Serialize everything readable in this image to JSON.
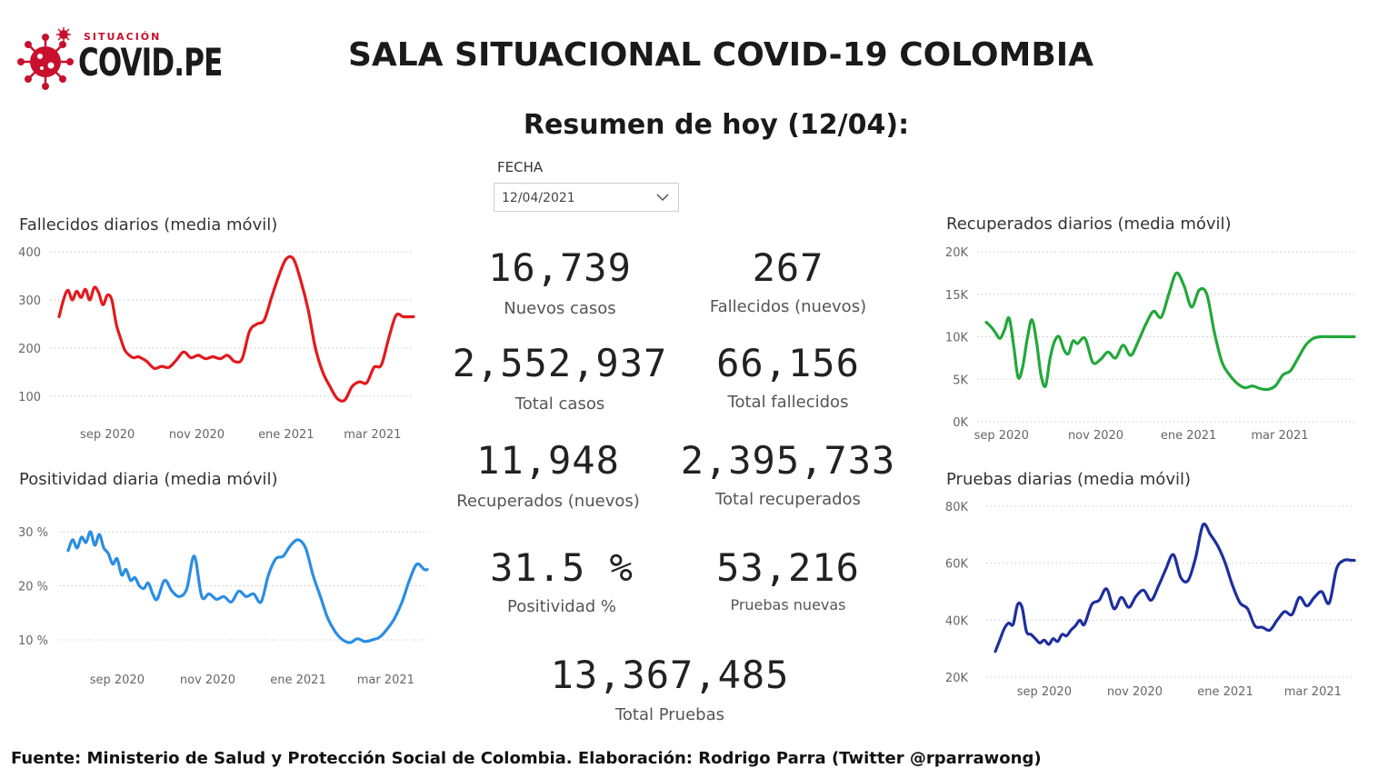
{
  "logo": {
    "small": "SITUACIÓN",
    "big": "COVID.PE"
  },
  "header": {
    "title": "SALA SITUACIONAL COVID-19 COLOMBIA",
    "subtitle": "Resumen de hoy (12/04):"
  },
  "filter": {
    "label": "FECHA",
    "value": "12/04/2021"
  },
  "kpis": [
    {
      "value": "16,739",
      "label": "Nuevos casos"
    },
    {
      "value": "267",
      "label": "Fallecidos (nuevos)"
    },
    {
      "value": "2,552,937",
      "label": "Total casos"
    },
    {
      "value": "66,156",
      "label": "Total fallecidos"
    },
    {
      "value": "11,948",
      "label": "Recuperados (nuevos)"
    },
    {
      "value": "2,395,733",
      "label": "Total recuperados"
    },
    {
      "value": "31.5 %",
      "label": "Positividad %"
    },
    {
      "value": "53,216",
      "label": "Pruebas nuevas"
    },
    {
      "value": "13,367,485",
      "label": "Total Pruebas"
    }
  ],
  "footer": "Fuente: Ministerio de Salud y Protección Social de Colombia. Elaboración: Rodrigo Parra (Twitter @rparrawong)",
  "chart_data": [
    {
      "id": "fallecidos",
      "type": "line",
      "title": "Fallecidos diarios (media móvil)",
      "color": "#e3191c",
      "x_range": [
        0,
        242
      ],
      "ylim": [
        100,
        400
      ],
      "yticks": [
        100,
        200,
        300,
        400
      ],
      "ytick_labels": [
        "100",
        "200",
        "300",
        "400"
      ],
      "xtick_labels": [
        "sep 2020",
        "nov 2020",
        "ene 2021",
        "mar 2021"
      ],
      "xticks": [
        33,
        94,
        155,
        214
      ],
      "grid": true,
      "x": [
        0,
        3,
        6,
        9,
        12,
        15,
        18,
        21,
        24,
        27,
        30,
        33,
        36,
        39,
        42,
        45,
        48,
        51,
        54,
        57,
        60,
        65,
        70,
        75,
        80,
        85,
        90,
        95,
        100,
        105,
        110,
        115,
        120,
        125,
        130,
        135,
        140,
        145,
        150,
        155,
        160,
        165,
        170,
        175,
        180,
        185,
        190,
        195,
        200,
        205,
        210,
        215,
        220,
        225,
        230,
        235,
        240,
        242
      ],
      "values": [
        265,
        300,
        320,
        300,
        318,
        305,
        322,
        300,
        326,
        315,
        290,
        310,
        300,
        250,
        220,
        195,
        185,
        180,
        182,
        178,
        172,
        158,
        162,
        160,
        175,
        192,
        180,
        185,
        178,
        182,
        178,
        185,
        172,
        178,
        235,
        250,
        258,
        305,
        350,
        385,
        385,
        340,
        280,
        200,
        150,
        120,
        95,
        92,
        120,
        130,
        128,
        160,
        165,
        220,
        268,
        265,
        265,
        265
      ]
    },
    {
      "id": "positividad",
      "type": "line",
      "title": "Positividad diaria (media móvil)",
      "color": "#2a8de4",
      "x_range": [
        0,
        242
      ],
      "ylim": [
        10,
        30
      ],
      "yticks": [
        10,
        20,
        30
      ],
      "ytick_labels": [
        "10 %",
        "20 %",
        "30 %"
      ],
      "xtick_labels": [
        "sep 2020",
        "nov 2020",
        "ene 2021",
        "mar 2021"
      ],
      "xticks": [
        33,
        94,
        155,
        214
      ],
      "grid": true,
      "x": [
        0,
        3,
        6,
        9,
        12,
        15,
        18,
        21,
        24,
        27,
        30,
        33,
        36,
        39,
        42,
        45,
        48,
        51,
        54,
        57,
        60,
        65,
        70,
        75,
        80,
        85,
        90,
        95,
        100,
        105,
        110,
        115,
        120,
        125,
        130,
        135,
        140,
        145,
        150,
        155,
        160,
        165,
        170,
        175,
        180,
        185,
        190,
        195,
        200,
        205,
        210,
        215,
        220,
        225,
        230,
        235,
        240,
        242
      ],
      "values": [
        26.5,
        28.5,
        27,
        29,
        28,
        30,
        27.5,
        29.5,
        27,
        26,
        24,
        25,
        22,
        23,
        21,
        21.5,
        20,
        19.5,
        20.5,
        18.5,
        17.5,
        21,
        19,
        18,
        19.5,
        25.5,
        18,
        18.5,
        17.5,
        18,
        17,
        19,
        18,
        18.5,
        17,
        22,
        25,
        25.5,
        27.5,
        28.5,
        27,
        22,
        18,
        14,
        11.5,
        10,
        9.5,
        10.2,
        9.7,
        10,
        10.5,
        12,
        14,
        17,
        21,
        24,
        23,
        23
      ]
    },
    {
      "id": "recuperados",
      "type": "line",
      "title": "Recuperados diarios (media móvil)",
      "color": "#22a83a",
      "x_range": [
        0,
        242
      ],
      "ylim": [
        0,
        20000
      ],
      "yticks": [
        0,
        5000,
        10000,
        15000,
        20000
      ],
      "ytick_labels": [
        "0K",
        "5K",
        "10K",
        "15K",
        "20K"
      ],
      "xtick_labels": [
        "sep 2020",
        "nov 2020",
        "ene 2021",
        "mar 2021"
      ],
      "xticks": [
        10,
        72,
        133,
        193
      ],
      "grid": true,
      "x": [
        0,
        3,
        6,
        9,
        12,
        15,
        18,
        21,
        24,
        27,
        30,
        33,
        36,
        39,
        42,
        45,
        48,
        51,
        54,
        57,
        60,
        65,
        70,
        75,
        80,
        85,
        90,
        95,
        100,
        105,
        110,
        115,
        120,
        125,
        130,
        135,
        140,
        145,
        150,
        155,
        160,
        165,
        170,
        175,
        180,
        185,
        190,
        195,
        200,
        205,
        210,
        215,
        220,
        225,
        230,
        235,
        240,
        242
      ],
      "values": [
        11700,
        11200,
        10500,
        9800,
        10800,
        12200,
        9000,
        5200,
        6500,
        9800,
        12000,
        9500,
        5500,
        4200,
        7500,
        9500,
        10000,
        8500,
        8000,
        9500,
        9200,
        9800,
        7000,
        7300,
        8200,
        7500,
        9000,
        7800,
        9500,
        11500,
        13000,
        12300,
        15000,
        17500,
        16000,
        13500,
        15500,
        15000,
        10500,
        7000,
        5500,
        4500,
        4000,
        4200,
        3900,
        3800,
        4200,
        5500,
        6000,
        7500,
        9000,
        9800,
        10000,
        10000,
        10000,
        10000,
        10000,
        10000
      ]
    },
    {
      "id": "pruebas",
      "type": "line",
      "title": "Pruebas diarias (media móvil)",
      "color": "#1d2e9e",
      "x_range": [
        0,
        242
      ],
      "ylim": [
        20000,
        80000
      ],
      "yticks": [
        20000,
        40000,
        60000,
        80000
      ],
      "ytick_labels": [
        "20K",
        "40K",
        "60K",
        "80K"
      ],
      "xtick_labels": [
        "sep 2020",
        "nov 2020",
        "ene 2021",
        "mar 2021"
      ],
      "xticks": [
        33,
        94,
        155,
        214
      ],
      "grid": true,
      "x": [
        0,
        3,
        6,
        9,
        12,
        15,
        18,
        21,
        24,
        27,
        30,
        33,
        36,
        39,
        42,
        45,
        48,
        51,
        54,
        57,
        60,
        65,
        70,
        75,
        80,
        85,
        90,
        95,
        100,
        105,
        110,
        115,
        120,
        125,
        130,
        135,
        140,
        145,
        150,
        155,
        160,
        165,
        170,
        175,
        180,
        185,
        190,
        195,
        200,
        205,
        210,
        215,
        220,
        225,
        230,
        235,
        240,
        242
      ],
      "values": [
        29000,
        33000,
        37000,
        39000,
        38500,
        45500,
        44500,
        36000,
        35000,
        33500,
        32000,
        33000,
        31500,
        33500,
        32500,
        35000,
        34500,
        36500,
        38000,
        40000,
        38500,
        45500,
        47000,
        51000,
        44000,
        48000,
        44500,
        48500,
        50500,
        47000,
        52000,
        58000,
        63000,
        55000,
        54000,
        62000,
        73500,
        70000,
        66000,
        60000,
        52000,
        46000,
        44000,
        38000,
        37500,
        36500,
        40000,
        43000,
        42000,
        48000,
        45000,
        48000,
        50000,
        46000,
        58000,
        61000,
        61000,
        61000
      ]
    }
  ]
}
